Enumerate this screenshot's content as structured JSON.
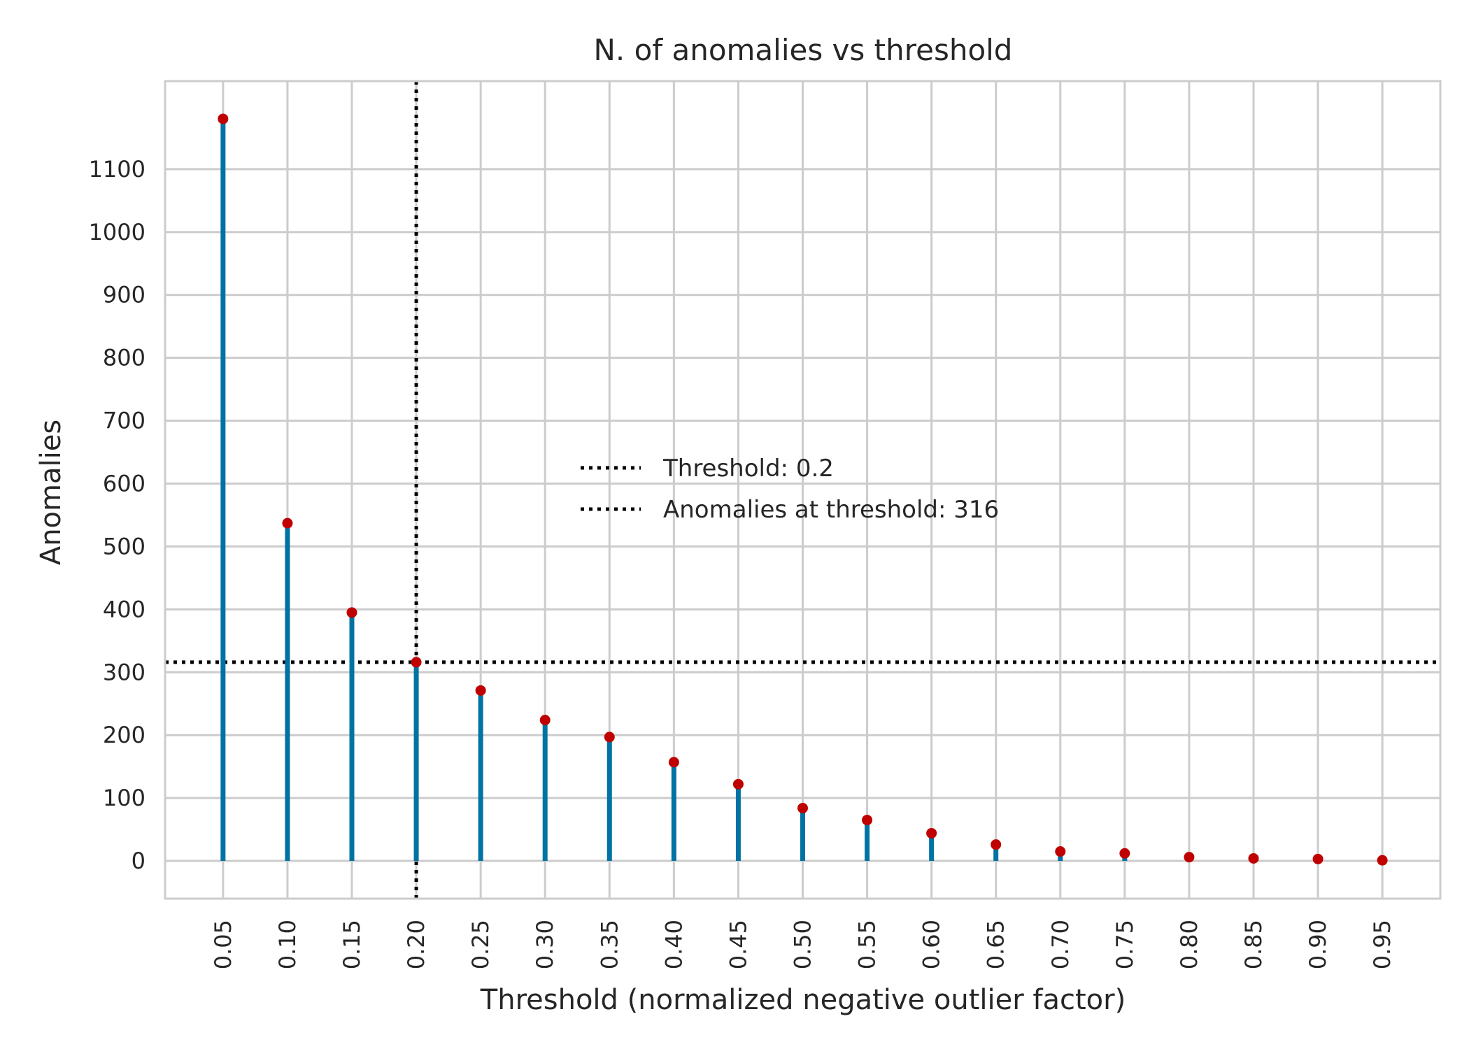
{
  "chart_data": {
    "type": "stem",
    "title": "N. of anomalies vs threshold",
    "xlabel": "Threshold (normalized negative outlier factor)",
    "ylabel": "Anomalies",
    "x": [
      0.05,
      0.1,
      0.15,
      0.2,
      0.25,
      0.3,
      0.35,
      0.4,
      0.45,
      0.5,
      0.55,
      0.6,
      0.65,
      0.7,
      0.75,
      0.8,
      0.85,
      0.9,
      0.95
    ],
    "x_tick_labels": [
      "0.05",
      "0.10",
      "0.15",
      "0.20",
      "0.25",
      "0.30",
      "0.35",
      "0.40",
      "0.45",
      "0.50",
      "0.55",
      "0.60",
      "0.65",
      "0.70",
      "0.75",
      "0.80",
      "0.85",
      "0.90",
      "0.95"
    ],
    "series": [
      {
        "values": [
          1180,
          537,
          395,
          316,
          271,
          224,
          197,
          157,
          122,
          84,
          65,
          44,
          26,
          15,
          12,
          6,
          4,
          3,
          1
        ]
      }
    ],
    "y_ticks": [
      0,
      100,
      200,
      300,
      400,
      500,
      600,
      700,
      800,
      900,
      1000,
      1100
    ],
    "xlim": [
      0.005,
      0.995
    ],
    "ylim": [
      -60,
      1240
    ],
    "grid": true,
    "stem_color": "#0072a3",
    "marker_color": "#c00000",
    "reference_line_color": "#000000",
    "threshold": {
      "x": 0.2,
      "anomalies": 316,
      "legend_label": "Threshold: 0.2",
      "anomalies_legend_label": "Anomalies at threshold: 316"
    },
    "legend": {
      "placement": "center",
      "entries": [
        "Threshold: 0.2",
        "Anomalies at threshold: 316"
      ]
    }
  }
}
